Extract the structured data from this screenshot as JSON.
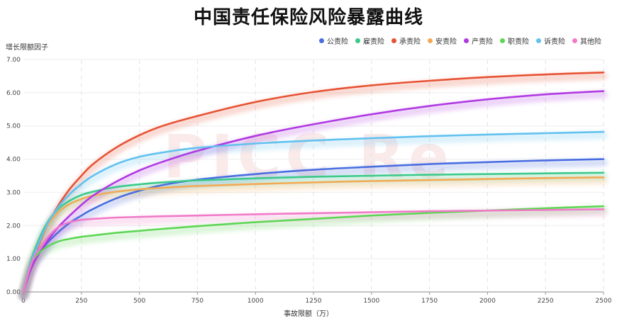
{
  "chart_data": {
    "type": "line",
    "title": "中国责任保险风险暴露曲线",
    "xlabel": "事故限额（万）",
    "ylabel": "增长限额因子",
    "xlim": [
      0,
      2500
    ],
    "ylim": [
      0,
      7
    ],
    "xticks": [
      "0",
      "250",
      "500",
      "750",
      "1000",
      "1250",
      "1500",
      "1750",
      "2000",
      "2250",
      "2500"
    ],
    "yticks": [
      "0.00",
      "1.00",
      "2.00",
      "3.00",
      "4.00",
      "5.00",
      "6.00",
      "7.00"
    ],
    "grid": true,
    "legend_position": "top-right",
    "x": [
      0,
      25,
      50,
      100,
      150,
      200,
      250,
      300,
      400,
      500,
      600,
      750,
      1000,
      1250,
      1500,
      1750,
      2000,
      2250,
      2500
    ],
    "series": [
      {
        "name": "公责险",
        "color": "#4a6ee0",
        "values": [
          0.0,
          0.6,
          1.0,
          1.45,
          1.8,
          2.08,
          2.3,
          2.5,
          2.82,
          3.05,
          3.22,
          3.38,
          3.55,
          3.68,
          3.77,
          3.85,
          3.91,
          3.96,
          4.0
        ]
      },
      {
        "name": "雇责险",
        "color": "#3cc98a",
        "values": [
          0.0,
          0.75,
          1.3,
          2.05,
          2.5,
          2.75,
          2.92,
          3.02,
          3.16,
          3.24,
          3.3,
          3.36,
          3.42,
          3.47,
          3.5,
          3.53,
          3.55,
          3.57,
          3.59
        ]
      },
      {
        "name": "承责险",
        "color": "#e65234",
        "values": [
          0.0,
          0.65,
          1.15,
          1.95,
          2.6,
          3.1,
          3.5,
          3.85,
          4.35,
          4.72,
          5.0,
          5.3,
          5.72,
          6.02,
          6.22,
          6.36,
          6.47,
          6.55,
          6.61
        ]
      },
      {
        "name": "安责险",
        "color": "#f2aa55",
        "values": [
          0.0,
          0.7,
          1.2,
          1.95,
          2.4,
          2.65,
          2.8,
          2.9,
          3.02,
          3.09,
          3.14,
          3.19,
          3.25,
          3.3,
          3.34,
          3.37,
          3.4,
          3.43,
          3.45
        ]
      },
      {
        "name": "产责险",
        "color": "#b03ae2",
        "values": [
          0.0,
          0.55,
          0.95,
          1.5,
          1.95,
          2.3,
          2.62,
          2.9,
          3.32,
          3.66,
          3.92,
          4.25,
          4.7,
          5.05,
          5.35,
          5.6,
          5.8,
          5.95,
          6.05
        ]
      },
      {
        "name": "职责险",
        "color": "#5ed655",
        "values": [
          0.0,
          0.7,
          1.05,
          1.35,
          1.52,
          1.6,
          1.66,
          1.7,
          1.78,
          1.84,
          1.9,
          1.98,
          2.1,
          2.2,
          2.3,
          2.38,
          2.45,
          2.52,
          2.58
        ]
      },
      {
        "name": "诉责险",
        "color": "#62c1ef",
        "values": [
          0.0,
          0.7,
          1.2,
          2.0,
          2.55,
          2.95,
          3.25,
          3.5,
          3.85,
          4.07,
          4.2,
          4.34,
          4.47,
          4.56,
          4.63,
          4.69,
          4.74,
          4.78,
          4.82
        ]
      },
      {
        "name": "其他险",
        "color": "#f07ac8",
        "values": [
          0.0,
          0.65,
          1.1,
          1.6,
          1.95,
          2.1,
          2.17,
          2.2,
          2.24,
          2.26,
          2.28,
          2.3,
          2.34,
          2.37,
          2.4,
          2.43,
          2.45,
          2.47,
          2.49
        ]
      }
    ]
  },
  "watermark": "PICC Re"
}
